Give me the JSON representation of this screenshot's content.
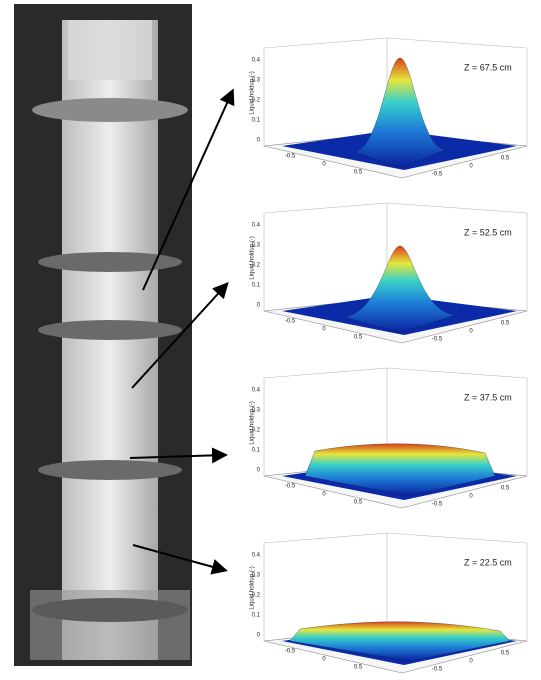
{
  "plots": [
    {
      "label": "Z = 67.5 cm",
      "z_axis_label": "Liquid holdup (-)",
      "z_ticks": [
        "0.4",
        "0.3",
        "0.2",
        "0.1",
        "0"
      ],
      "x_ticks": [
        "-0.5",
        "0",
        "0.5"
      ],
      "y_ticks": [
        "-0.5",
        "0",
        "0.5"
      ]
    },
    {
      "label": "Z = 52.5 cm",
      "z_axis_label": "Liquid holdup (-)",
      "z_ticks": [
        "0.4",
        "0.3",
        "0.2",
        "0.1",
        "0"
      ],
      "x_ticks": [
        "-0.5",
        "0",
        "0.5"
      ],
      "y_ticks": [
        "-0.5",
        "0",
        "0.5"
      ]
    },
    {
      "label": "Z = 37.5 cm",
      "z_axis_label": "Liquid holdup (-)",
      "z_ticks": [
        "0.4",
        "0.3",
        "0.2",
        "0.1",
        "0"
      ],
      "x_ticks": [
        "-0.5",
        "0",
        "0.5"
      ],
      "y_ticks": [
        "-0.5",
        "0",
        "0.5"
      ]
    },
    {
      "label": "Z = 22.5 cm",
      "z_axis_label": "Liquid holdup (-)",
      "z_ticks": [
        "0.4",
        "0.3",
        "0.2",
        "0.1",
        "0"
      ],
      "x_ticks": [
        "-0.5",
        "0",
        "0.5"
      ],
      "y_ticks": [
        "-0.5",
        "0",
        "0.5"
      ]
    }
  ]
}
